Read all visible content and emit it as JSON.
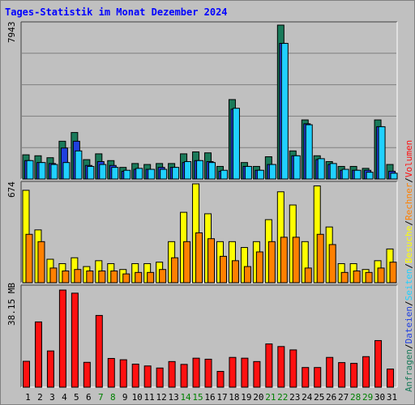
{
  "title": "Tages-Statistik im Monat Dezember 2024",
  "colors": {
    "anfragen": "#1a7a5a",
    "dateien": "#2040e0",
    "seiten": "#20d0ff",
    "besuche": "#ffff00",
    "rechner": "#ff8000",
    "volumen": "#ff1010",
    "weekend_day": "#008000",
    "weekday": "#000000"
  },
  "legend": {
    "top": [
      {
        "key": "anfragen",
        "label": "Anfragen"
      },
      {
        "sep": "/"
      },
      {
        "key": "dateien",
        "label": "Dateien"
      },
      {
        "sep": "/"
      },
      {
        "key": "seiten",
        "label": "Seiten"
      },
      {
        "sep": "/"
      },
      {
        "key": "besuche",
        "label": "Besuche"
      },
      {
        "sep": "/"
      },
      {
        "key": "rechner",
        "label": "Rechner"
      },
      {
        "sep": "/"
      },
      {
        "key": "volumen",
        "label": "Volumen"
      }
    ]
  },
  "chart_data": [
    {
      "type": "bar",
      "panel": "hits",
      "ymax_label": "7943",
      "ylim": [
        0,
        7943
      ],
      "categories": [
        "1",
        "2",
        "3",
        "4",
        "5",
        "6",
        "7",
        "8",
        "9",
        "10",
        "11",
        "12",
        "13",
        "14",
        "15",
        "16",
        "17",
        "18",
        "19",
        "20",
        "21",
        "22",
        "23",
        "24",
        "25",
        "26",
        "27",
        "28",
        "29",
        "30",
        "31"
      ],
      "weekend": [
        7,
        8,
        14,
        15,
        21,
        22,
        28,
        29
      ],
      "series": [
        {
          "name": "Anfragen",
          "color_key": "anfragen",
          "values": [
            1250,
            1200,
            1100,
            1950,
            2400,
            1000,
            1300,
            950,
            600,
            800,
            750,
            800,
            800,
            1300,
            1400,
            1350,
            650,
            4100,
            850,
            650,
            1150,
            7943,
            1450,
            3050,
            1200,
            900,
            650,
            650,
            550,
            3050,
            750
          ]
        },
        {
          "name": "Dateien",
          "color_key": "dateien",
          "values": [
            950,
            850,
            800,
            1600,
            1950,
            700,
            900,
            700,
            400,
            500,
            500,
            600,
            600,
            850,
            950,
            900,
            400,
            3600,
            650,
            450,
            750,
            7000,
            1200,
            2850,
            1000,
            750,
            450,
            450,
            450,
            2700,
            400
          ]
        },
        {
          "name": "Seiten",
          "color_key": "seiten",
          "values": [
            950,
            850,
            750,
            850,
            1450,
            650,
            750,
            600,
            450,
            550,
            500,
            500,
            600,
            900,
            950,
            850,
            450,
            3650,
            650,
            450,
            750,
            7000,
            1200,
            2800,
            1050,
            800,
            500,
            450,
            350,
            2700,
            300
          ]
        }
      ]
    },
    {
      "type": "bar",
      "panel": "visits",
      "ymax_label": "674",
      "ylim": [
        0,
        674
      ],
      "categories": [
        "1",
        "2",
        "3",
        "4",
        "5",
        "6",
        "7",
        "8",
        "9",
        "10",
        "11",
        "12",
        "13",
        "14",
        "15",
        "16",
        "17",
        "18",
        "19",
        "20",
        "21",
        "22",
        "23",
        "24",
        "25",
        "26",
        "27",
        "28",
        "29",
        "30",
        "31"
      ],
      "series": [
        {
          "name": "Besuche",
          "color_key": "besuche",
          "values": [
            630,
            360,
            160,
            130,
            170,
            110,
            150,
            130,
            90,
            130,
            130,
            140,
            280,
            480,
            674,
            470,
            280,
            280,
            240,
            280,
            430,
            620,
            530,
            280,
            660,
            380,
            130,
            130,
            90,
            150,
            230
          ]
        },
        {
          "name": "Rechner",
          "color_key": "rechner",
          "values": [
            330,
            280,
            100,
            80,
            90,
            80,
            80,
            80,
            60,
            70,
            70,
            90,
            170,
            280,
            340,
            300,
            180,
            150,
            110,
            210,
            280,
            310,
            310,
            100,
            330,
            260,
            70,
            80,
            70,
            100,
            140
          ]
        }
      ]
    },
    {
      "type": "bar",
      "panel": "volume",
      "ymax_label": "38.15 MB",
      "ylim": [
        0,
        38.15
      ],
      "categories": [
        "1",
        "2",
        "3",
        "4",
        "5",
        "6",
        "7",
        "8",
        "9",
        "10",
        "11",
        "12",
        "13",
        "14",
        "15",
        "16",
        "17",
        "18",
        "19",
        "20",
        "21",
        "22",
        "23",
        "24",
        "25",
        "26",
        "27",
        "28",
        "29",
        "30",
        "31"
      ],
      "series": [
        {
          "name": "Volumen",
          "color_key": "volumen",
          "values": [
            10.0,
            25.2,
            14.0,
            37.5,
            36.3,
            9.6,
            27.7,
            11.1,
            10.6,
            8.9,
            8.2,
            7.4,
            9.9,
            8.8,
            11.2,
            10.8,
            6.1,
            11.5,
            11.2,
            9.9,
            16.7,
            15.7,
            14.4,
            7.6,
            7.6,
            11.5,
            9.5,
            9.2,
            11.8,
            18.0,
            7.0
          ]
        }
      ]
    }
  ]
}
